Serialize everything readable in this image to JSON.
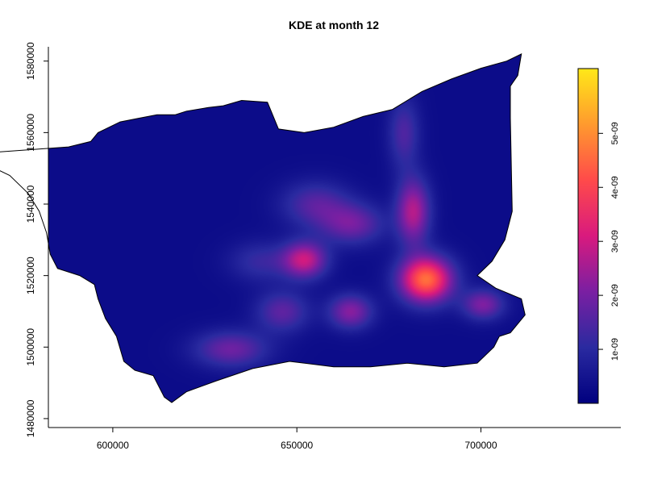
{
  "chart_data": {
    "type": "heatmap",
    "title": "KDE at month 12",
    "xlabel": "",
    "ylabel": "",
    "xlim": [
      582500,
      738000
    ],
    "ylim": [
      1477500,
      1584000
    ],
    "x_ticks": [
      600000,
      650000,
      700000
    ],
    "x_tick_labels": [
      "600000",
      "650000",
      "700000"
    ],
    "y_ticks": [
      1480000,
      1500000,
      1520000,
      1540000,
      1560000,
      1580000
    ],
    "y_tick_labels": [
      "1480000",
      "1500000",
      "1520000",
      "1540000",
      "1560000",
      "1580000"
    ],
    "colorbar": {
      "range": [
        0,
        6.2e-09
      ],
      "ticks": [
        1e-09,
        2e-09,
        3e-09,
        4e-09,
        5e-09
      ],
      "tick_labels": [
        "1e-09",
        "2e-09",
        "3e-09",
        "4e-09",
        "5e-09"
      ],
      "colors": [
        "#00007f",
        "#2a2aa0",
        "#7a1fa2",
        "#d91a7e",
        "#ff4a4a",
        "#ff9a2e",
        "#ffe818"
      ]
    },
    "region_boundary": [
      [
        588000,
        1556000
      ],
      [
        594000,
        1557500
      ],
      [
        596000,
        1560000
      ],
      [
        602000,
        1563000
      ],
      [
        607000,
        1564000
      ],
      [
        612000,
        1565000
      ],
      [
        617000,
        1565000
      ],
      [
        620000,
        1566000
      ],
      [
        626000,
        1567000
      ],
      [
        630000,
        1567500
      ],
      [
        635000,
        1569000
      ],
      [
        642000,
        1568500
      ],
      [
        645000,
        1561000
      ],
      [
        652000,
        1560000
      ],
      [
        660000,
        1561500
      ],
      [
        668000,
        1564500
      ],
      [
        676000,
        1566500
      ],
      [
        684000,
        1571500
      ],
      [
        692000,
        1575000
      ],
      [
        700000,
        1578000
      ],
      [
        707000,
        1580000
      ],
      [
        711000,
        1582000
      ],
      [
        710000,
        1576000
      ],
      [
        708000,
        1573000
      ],
      [
        708000,
        1564000
      ],
      [
        708500,
        1538000
      ],
      [
        706500,
        1530000
      ],
      [
        703000,
        1524000
      ],
      [
        699000,
        1520000
      ],
      [
        704000,
        1516500
      ],
      [
        711000,
        1513500
      ],
      [
        712000,
        1509000
      ],
      [
        708000,
        1504000
      ],
      [
        705000,
        1503000
      ],
      [
        703500,
        1500000
      ],
      [
        699000,
        1495500
      ],
      [
        690000,
        1494500
      ],
      [
        680000,
        1495500
      ],
      [
        670000,
        1494500
      ],
      [
        660000,
        1494500
      ],
      [
        648000,
        1496000
      ],
      [
        638000,
        1494000
      ],
      [
        628000,
        1490500
      ],
      [
        620000,
        1487500
      ],
      [
        616000,
        1484500
      ],
      [
        614000,
        1486000
      ],
      [
        611000,
        1492000
      ],
      [
        606000,
        1493500
      ],
      [
        603000,
        1496000
      ],
      [
        601000,
        1503000
      ],
      [
        598000,
        1508000
      ],
      [
        596000,
        1513500
      ],
      [
        595000,
        1517500
      ],
      [
        591000,
        1520000
      ],
      [
        585000,
        1522000
      ],
      [
        583000,
        1526000
      ],
      [
        582000,
        1532000
      ],
      [
        580000,
        1538000
      ],
      [
        577000,
        1543000
      ],
      [
        572000,
        1548000
      ],
      [
        566000,
        1551000
      ],
      [
        561000,
        1554000
      ]
    ],
    "hotspots": [
      {
        "x": 685000,
        "y": 1519000,
        "sx": 5000,
        "sy": 4500,
        "density": 4.3e-09
      },
      {
        "x": 681500,
        "y": 1538000,
        "sx": 3200,
        "sy": 6500,
        "density": 2.4e-09
      },
      {
        "x": 679000,
        "y": 1560000,
        "sx": 3000,
        "sy": 7000,
        "density": 1.2e-09
      },
      {
        "x": 652000,
        "y": 1524500,
        "sx": 4200,
        "sy": 3600,
        "density": 2.6e-09
      },
      {
        "x": 665000,
        "y": 1534500,
        "sx": 6000,
        "sy": 4000,
        "density": 1.6e-09
      },
      {
        "x": 655000,
        "y": 1540000,
        "sx": 6500,
        "sy": 4500,
        "density": 1.3e-09
      },
      {
        "x": 664500,
        "y": 1510000,
        "sx": 4200,
        "sy": 3400,
        "density": 1.9e-09
      },
      {
        "x": 646000,
        "y": 1510000,
        "sx": 5000,
        "sy": 4000,
        "density": 1.4e-09
      },
      {
        "x": 632000,
        "y": 1499500,
        "sx": 7000,
        "sy": 3600,
        "density": 1.6e-09
      },
      {
        "x": 700500,
        "y": 1512000,
        "sx": 4000,
        "sy": 3000,
        "density": 1.8e-09
      },
      {
        "x": 640000,
        "y": 1524000,
        "sx": 6000,
        "sy": 4000,
        "density": 9e-10
      }
    ],
    "background_density": 3e-10
  }
}
